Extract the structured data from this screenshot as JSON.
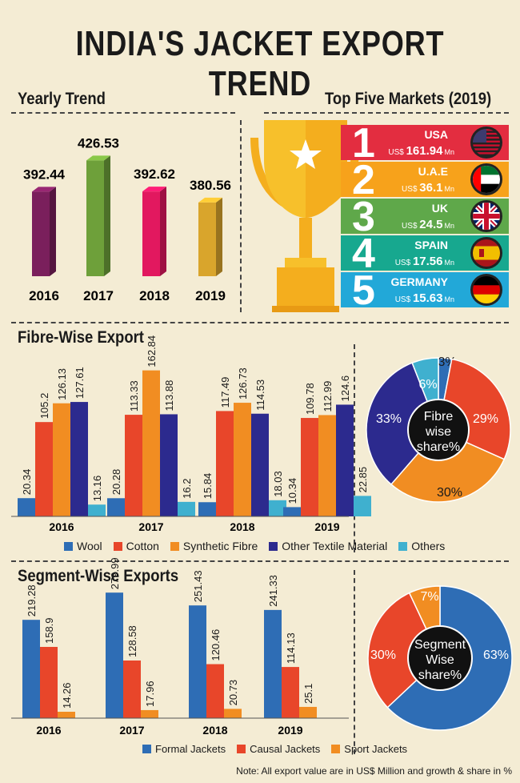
{
  "title": "INDIA'S JACKET EXPORT TREND",
  "sections": {
    "yearly": "Yearly Trend",
    "markets": "Top Five Markets (2019)",
    "fibre": "Fibre-Wise Export",
    "segment": "Segment-Wise Exports"
  },
  "note": "Note: All export value are in US$ Million and growth & share in %",
  "chart_data": [
    {
      "id": "yearly",
      "type": "bar",
      "categories": [
        "2016",
        "2017",
        "2018",
        "2019"
      ],
      "values": [
        392.44,
        426.53,
        392.62,
        380.56
      ],
      "value_labels": [
        "392.44",
        "426.53",
        "392.62",
        "380.56"
      ],
      "colors": [
        "#7a1f5c",
        "#6ea03a",
        "#e2185f",
        "#d9a52c"
      ]
    },
    {
      "id": "markets",
      "type": "table",
      "rows": [
        {
          "rank": "1",
          "country": "USA",
          "prefix": "US$",
          "value": "161.94",
          "unit": "Mn",
          "color": "#e32d40"
        },
        {
          "rank": "2",
          "country": "U.A.E",
          "prefix": "US$",
          "value": "36.1",
          "unit": "Mn",
          "color": "#f7a21b"
        },
        {
          "rank": "3",
          "country": "UK",
          "prefix": "US$",
          "value": "24.5",
          "unit": "Mn",
          "color": "#5fa84a"
        },
        {
          "rank": "4",
          "country": "SPAIN",
          "prefix": "US$",
          "value": "17.56",
          "unit": "Mn",
          "color": "#17a88f"
        },
        {
          "rank": "5",
          "country": "GERMANY",
          "prefix": "US$",
          "value": "15.63",
          "unit": "Mn",
          "color": "#22a8d8"
        }
      ]
    },
    {
      "id": "fibre",
      "type": "bar",
      "categories": [
        "2016",
        "2017",
        "2018",
        "2019"
      ],
      "series": [
        {
          "name": "Wool",
          "color": "#2e6db5",
          "values": [
            20.34,
            20.28,
            15.84,
            10.34
          ],
          "labels": [
            "20.34",
            "20.28",
            "15.84",
            "10.34"
          ]
        },
        {
          "name": "Cotton",
          "color": "#e8462a",
          "values": [
            105.2,
            113.33,
            117.49,
            109.78
          ],
          "labels": [
            "105.2",
            "113.33",
            "117.49",
            "109.78"
          ]
        },
        {
          "name": "Synthetic Fibre",
          "color": "#f18d22",
          "values": [
            126.13,
            162.84,
            126.73,
            112.99
          ],
          "labels": [
            "126.13",
            "162.84",
            "126.73",
            "112.99"
          ]
        },
        {
          "name": "Other Textile Material",
          "color": "#2c2a8e",
          "values": [
            127.61,
            113.88,
            114.53,
            124.6
          ],
          "labels": [
            "127.61",
            "113.88",
            "114.53",
            "124.6"
          ]
        },
        {
          "name": "Others",
          "color": "#3fb0cf",
          "values": [
            13.16,
            16.2,
            18.03,
            22.85
          ],
          "labels": [
            "13.16",
            "16.2",
            "18.03",
            "22.85"
          ]
        }
      ]
    },
    {
      "id": "fibre_share",
      "type": "pie",
      "center_label": [
        "Fibre",
        "wise",
        "share%"
      ],
      "slices": [
        {
          "label": "3%",
          "value": 3,
          "color": "#2e6db5"
        },
        {
          "label": "29%",
          "value": 29,
          "color": "#e8462a"
        },
        {
          "label": "30%",
          "value": 30,
          "color": "#f18d22"
        },
        {
          "label": "33%",
          "value": 33,
          "color": "#2c2a8e"
        },
        {
          "label": "6%",
          "value": 6,
          "color": "#3fb0cf"
        }
      ]
    },
    {
      "id": "segment",
      "type": "bar",
      "categories": [
        "2016",
        "2017",
        "2018",
        "2019"
      ],
      "series": [
        {
          "name": "Formal Jackets",
          "color": "#2e6db5",
          "values": [
            219.28,
            279.99,
            251.43,
            241.33
          ],
          "labels": [
            "219.28",
            "279.99",
            "251.43",
            "241.33"
          ]
        },
        {
          "name": "Causal Jackets",
          "color": "#e8462a",
          "values": [
            158.9,
            128.58,
            120.46,
            114.13
          ],
          "labels": [
            "158.9",
            "128.58",
            "120.46",
            "114.13"
          ]
        },
        {
          "name": "Sport  Jackets",
          "color": "#f18d22",
          "values": [
            14.26,
            17.96,
            20.73,
            25.1
          ],
          "labels": [
            "14.26",
            "17.96",
            "20.73",
            "25.1"
          ]
        }
      ]
    },
    {
      "id": "segment_share",
      "type": "pie",
      "center_label": [
        "Segment",
        "Wise",
        "share%"
      ],
      "slices": [
        {
          "label": "63%",
          "value": 63,
          "color": "#2e6db5"
        },
        {
          "label": "30%",
          "value": 30,
          "color": "#e8462a"
        },
        {
          "label": "7%",
          "value": 7,
          "color": "#f18d22"
        }
      ]
    }
  ]
}
